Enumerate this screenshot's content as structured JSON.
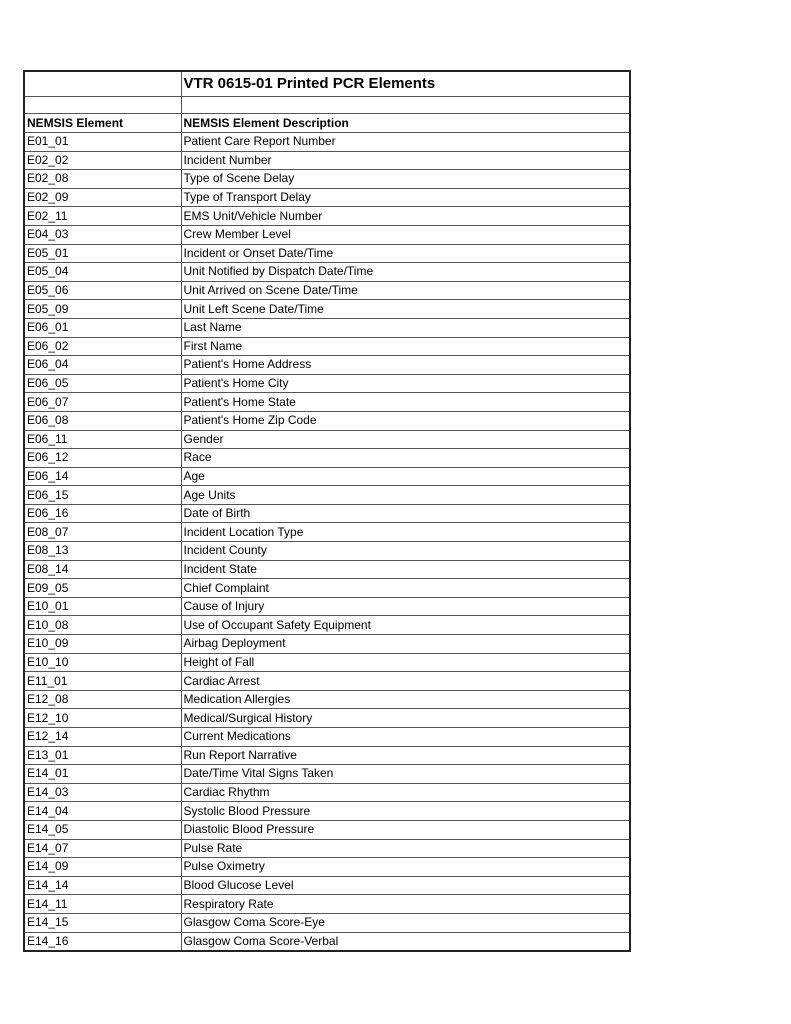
{
  "title": "VTR 0615-01 Printed PCR Elements",
  "headers": [
    "NEMSIS Element",
    "NEMSIS Element Description"
  ],
  "rows": [
    [
      "E01_01",
      "Patient Care Report Number"
    ],
    [
      "E02_02",
      "Incident Number"
    ],
    [
      "E02_08",
      "Type of Scene Delay"
    ],
    [
      "E02_09",
      "Type of Transport Delay"
    ],
    [
      "E02_11",
      "EMS Unit/Vehicle  Number"
    ],
    [
      "E04_03",
      "Crew Member Level"
    ],
    [
      "E05_01",
      "Incident or Onset  Date/Time"
    ],
    [
      "E05_04",
      "Unit Notified by Dispatch Date/Time"
    ],
    [
      "E05_06",
      "Unit Arrived on Scene Date/Time"
    ],
    [
      "E05_09",
      "Unit Left Scene Date/Time"
    ],
    [
      "E06_01",
      "Last Name"
    ],
    [
      "E06_02",
      "First Name"
    ],
    [
      "E06_04",
      "Patient's Home Address"
    ],
    [
      "E06_05",
      "Patient's Home City"
    ],
    [
      "E06_07",
      "Patient's Home State"
    ],
    [
      "E06_08",
      "Patient's Home Zip Code"
    ],
    [
      "E06_11",
      "Gender"
    ],
    [
      "E06_12",
      "Race"
    ],
    [
      "E06_14",
      "Age"
    ],
    [
      "E06_15",
      "Age Units"
    ],
    [
      "E06_16",
      "Date of Birth"
    ],
    [
      "E08_07",
      "Incident Location Type"
    ],
    [
      "E08_13",
      "Incident County"
    ],
    [
      "E08_14",
      "Incident State"
    ],
    [
      "E09_05",
      "Chief Complaint"
    ],
    [
      "E10_01",
      "Cause of Injury"
    ],
    [
      "E10_08",
      "Use of Occupant Safety Equipment"
    ],
    [
      "E10_09",
      "Airbag Deployment"
    ],
    [
      "E10_10",
      "Height of Fall"
    ],
    [
      "E11_01",
      "Cardiac Arrest"
    ],
    [
      "E12_08",
      "Medication Allergies"
    ],
    [
      "E12_10",
      "Medical/Surgical History"
    ],
    [
      "E12_14",
      "Current Medications"
    ],
    [
      "E13_01",
      "Run Report Narrative"
    ],
    [
      "E14_01",
      "Date/Time Vital Signs Taken"
    ],
    [
      "E14_03",
      "Cardiac Rhythm"
    ],
    [
      "E14_04",
      "Systolic Blood Pressure"
    ],
    [
      "E14_05",
      "Diastolic Blood Pressure"
    ],
    [
      "E14_07",
      "Pulse Rate"
    ],
    [
      "E14_09",
      "Pulse Oximetry"
    ],
    [
      "E14_14",
      "Blood Glucose Level"
    ],
    [
      "E14_11",
      "Respiratory Rate"
    ],
    [
      "E14_15",
      "Glasgow Coma Score-Eye"
    ],
    [
      "E14_16",
      "Glasgow Coma Score-Verbal"
    ]
  ]
}
